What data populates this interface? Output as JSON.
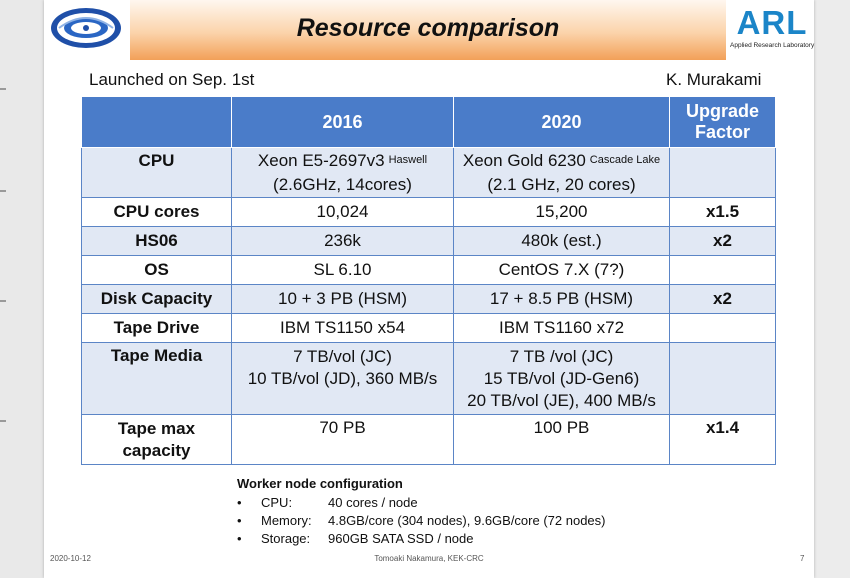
{
  "slide": {
    "title": "Resource comparison",
    "launched": "Launched on Sep. 1st",
    "author": "K. Murakami",
    "logo_right": {
      "text": "ARL",
      "subtitle": "Applied Research Laboratory"
    },
    "table": {
      "headers": [
        "",
        "2016",
        "2020",
        "Upgrade Factor"
      ],
      "rows": [
        {
          "label": "CPU",
          "v2016": [
            "Xeon E5-2697v3",
            "(2.6GHz, 14cores)"
          ],
          "v2016_tag": "Haswell",
          "v2020": [
            "Xeon Gold 6230",
            "(2.1 GHz, 20 cores)"
          ],
          "v2020_tag": "Cascade Lake",
          "factor": ""
        },
        {
          "label": "CPU cores",
          "v2016": [
            "10,024"
          ],
          "v2020": [
            "15,200"
          ],
          "factor": "x1.5"
        },
        {
          "label": "HS06",
          "v2016": [
            "236k"
          ],
          "v2020": [
            "480k (est.)"
          ],
          "factor": "x2"
        },
        {
          "label": "OS",
          "v2016": [
            "SL 6.10"
          ],
          "v2020": [
            "CentOS 7.X (7?)"
          ],
          "factor": ""
        },
        {
          "label": "Disk Capacity",
          "v2016": [
            "10 + 3 PB (HSM)"
          ],
          "v2020": [
            "17 + 8.5 PB (HSM)"
          ],
          "factor": "x2"
        },
        {
          "label": "Tape Drive",
          "v2016": [
            "IBM TS1150 x54"
          ],
          "v2020": [
            "IBM TS1160 x72"
          ],
          "factor": ""
        },
        {
          "label": "Tape Media",
          "v2016": [
            "7 TB/vol (JC)",
            "10 TB/vol (JD), 360 MB/s"
          ],
          "v2020": [
            "7 TB /vol (JC)",
            "15 TB/vol (JD-Gen6)",
            "20 TB/vol (JE), 400 MB/s"
          ],
          "factor": ""
        },
        {
          "label": "Tape max capacity",
          "label_lines": [
            "Tape max",
            "capacity"
          ],
          "v2016": [
            "70 PB"
          ],
          "v2020": [
            "100 PB"
          ],
          "factor": "x1.4"
        }
      ]
    },
    "worker_config": {
      "title": "Worker node configuration",
      "bullet": "•",
      "items": [
        {
          "key": "CPU:",
          "value": "40 cores / node"
        },
        {
          "key": "Memory:",
          "value": "4.8GB/core (304 nodes), 9.6GB/core (72 nodes)"
        },
        {
          "key": "Storage:",
          "value": "960GB SATA SSD / node"
        }
      ]
    },
    "footer": {
      "date": "2020-10-12",
      "center": "Tomoaki Nakamura, KEK-CRC",
      "page": "7"
    }
  },
  "colors": {
    "header_blue": "#4a7cc9",
    "row_alt": "#e1e8f4",
    "title_orange": "#f2a058",
    "arl_blue": "#1b85c8"
  }
}
